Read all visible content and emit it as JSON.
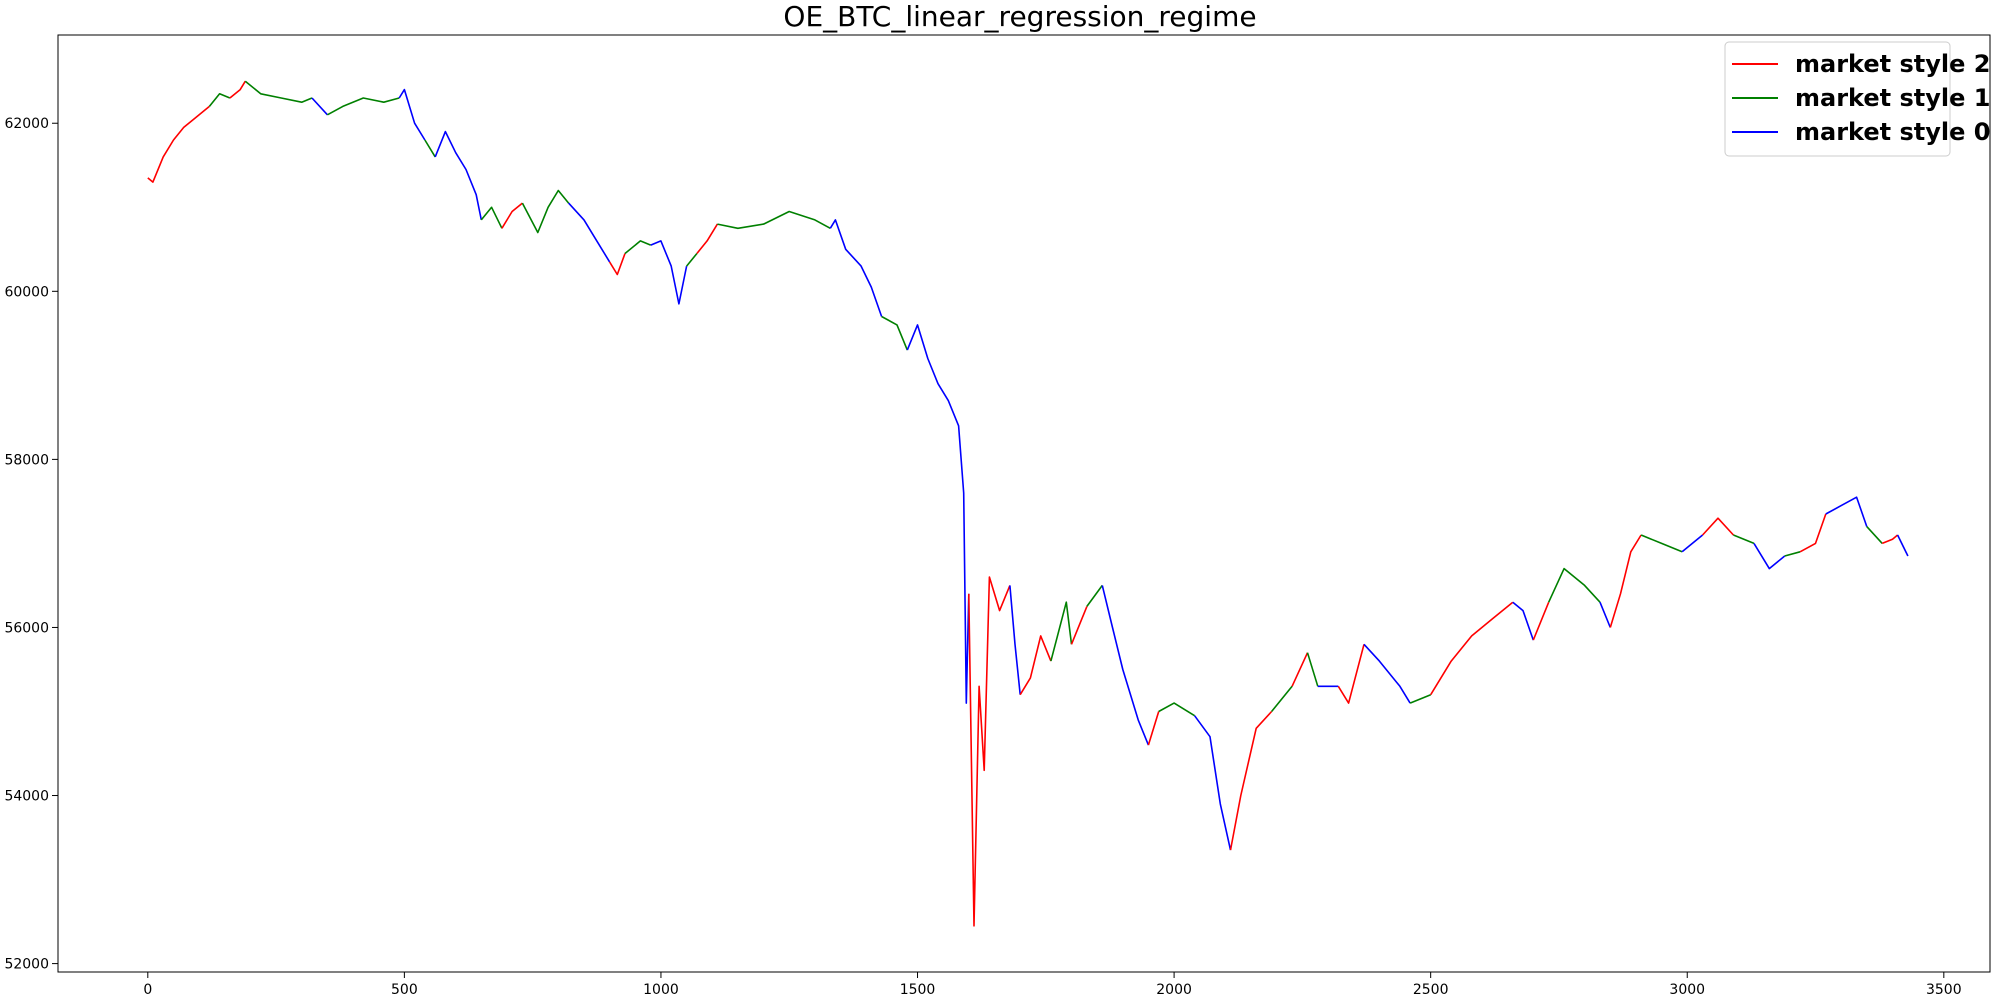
{
  "chart_data": {
    "type": "line",
    "title": "OE_BTC_linear_regression_regime",
    "xlabel": "",
    "ylabel": "",
    "xlim": [
      -175,
      3590
    ],
    "ylim": [
      51900,
      63050
    ],
    "x_ticks": [
      0,
      500,
      1000,
      1500,
      2000,
      2500,
      3000,
      3500
    ],
    "y_ticks": [
      52000,
      54000,
      56000,
      58000,
      60000,
      62000
    ],
    "x_tick_labels": [
      "0",
      "500",
      "1000",
      "1500",
      "2000",
      "2500",
      "3000",
      "3500"
    ],
    "y_tick_labels": [
      "52000",
      "54000",
      "56000",
      "58000",
      "60000",
      "62000"
    ],
    "grid": false,
    "legend": {
      "placement": "top-right",
      "entries": [
        {
          "label": "market style 2",
          "color": "#ff0000"
        },
        {
          "label": "market style 1",
          "color": "#008000"
        },
        {
          "label": "market style 0",
          "color": "#0000ff"
        }
      ]
    },
    "colors": {
      "2": "#ff0000",
      "1": "#008000",
      "0": "#0000ff"
    },
    "points": [
      [
        0,
        61350,
        2
      ],
      [
        10,
        61300,
        2
      ],
      [
        30,
        61600,
        2
      ],
      [
        50,
        61800,
        2
      ],
      [
        70,
        61950,
        2
      ],
      [
        90,
        62050,
        2
      ],
      [
        110,
        62150,
        2
      ],
      [
        120,
        62200,
        2
      ],
      [
        120,
        62200,
        1
      ],
      [
        140,
        62350,
        1
      ],
      [
        160,
        62300,
        1
      ],
      [
        160,
        62300,
        2
      ],
      [
        180,
        62400,
        2
      ],
      [
        190,
        62500,
        2
      ],
      [
        190,
        62500,
        1
      ],
      [
        220,
        62350,
        1
      ],
      [
        260,
        62300,
        1
      ],
      [
        300,
        62250,
        1
      ],
      [
        320,
        62300,
        1
      ],
      [
        320,
        62300,
        0
      ],
      [
        350,
        62100,
        0
      ],
      [
        350,
        62100,
        1
      ],
      [
        380,
        62200,
        1
      ],
      [
        420,
        62300,
        1
      ],
      [
        460,
        62250,
        1
      ],
      [
        490,
        62300,
        1
      ],
      [
        490,
        62300,
        0
      ],
      [
        500,
        62400,
        0
      ],
      [
        520,
        62000,
        0
      ],
      [
        540,
        61800,
        0
      ],
      [
        540,
        61800,
        1
      ],
      [
        560,
        61600,
        1
      ],
      [
        560,
        61600,
        0
      ],
      [
        580,
        61900,
        0
      ],
      [
        600,
        61650,
        0
      ],
      [
        620,
        61450,
        0
      ],
      [
        640,
        61150,
        0
      ],
      [
        650,
        60850,
        0
      ],
      [
        650,
        60850,
        1
      ],
      [
        670,
        61000,
        1
      ],
      [
        690,
        60750,
        1
      ],
      [
        690,
        60750,
        2
      ],
      [
        710,
        60950,
        2
      ],
      [
        730,
        61050,
        2
      ],
      [
        730,
        61050,
        1
      ],
      [
        760,
        60700,
        1
      ],
      [
        780,
        61000,
        1
      ],
      [
        800,
        61200,
        1
      ],
      [
        820,
        61050,
        1
      ],
      [
        820,
        61050,
        0
      ],
      [
        850,
        60850,
        0
      ],
      [
        870,
        60650,
        0
      ],
      [
        900,
        60350,
        0
      ],
      [
        900,
        60350,
        2
      ],
      [
        915,
        60200,
        2
      ],
      [
        930,
        60450,
        2
      ],
      [
        930,
        60450,
        1
      ],
      [
        960,
        60600,
        1
      ],
      [
        980,
        60550,
        1
      ],
      [
        980,
        60550,
        0
      ],
      [
        1000,
        60600,
        0
      ],
      [
        1020,
        60300,
        0
      ],
      [
        1035,
        59850,
        0
      ],
      [
        1050,
        60300,
        0
      ],
      [
        1050,
        60300,
        1
      ],
      [
        1070,
        60450,
        1
      ],
      [
        1070,
        60450,
        2
      ],
      [
        1090,
        60600,
        2
      ],
      [
        1110,
        60800,
        2
      ],
      [
        1110,
        60800,
        1
      ],
      [
        1150,
        60750,
        1
      ],
      [
        1200,
        60800,
        1
      ],
      [
        1250,
        60950,
        1
      ],
      [
        1300,
        60850,
        1
      ],
      [
        1330,
        60750,
        1
      ],
      [
        1330,
        60750,
        0
      ],
      [
        1340,
        60850,
        0
      ],
      [
        1360,
        60500,
        0
      ],
      [
        1390,
        60300,
        0
      ],
      [
        1410,
        60050,
        0
      ],
      [
        1430,
        59700,
        0
      ],
      [
        1430,
        59700,
        1
      ],
      [
        1460,
        59600,
        1
      ],
      [
        1480,
        59300,
        1
      ],
      [
        1480,
        59300,
        0
      ],
      [
        1500,
        59600,
        0
      ],
      [
        1520,
        59200,
        0
      ],
      [
        1540,
        58900,
        0
      ],
      [
        1560,
        58700,
        0
      ],
      [
        1580,
        58400,
        0
      ],
      [
        1590,
        57600,
        0
      ],
      [
        1595,
        55100,
        0
      ],
      [
        1600,
        56400,
        0
      ],
      [
        1600,
        56400,
        2
      ],
      [
        1610,
        52450,
        2
      ],
      [
        1620,
        55300,
        2
      ],
      [
        1630,
        54300,
        2
      ],
      [
        1640,
        56600,
        2
      ],
      [
        1660,
        56200,
        2
      ],
      [
        1680,
        56500,
        2
      ],
      [
        1680,
        56500,
        0
      ],
      [
        1690,
        55800,
        0
      ],
      [
        1700,
        55200,
        0
      ],
      [
        1700,
        55200,
        2
      ],
      [
        1720,
        55400,
        2
      ],
      [
        1740,
        55900,
        2
      ],
      [
        1760,
        55600,
        2
      ],
      [
        1760,
        55600,
        1
      ],
      [
        1790,
        56300,
        1
      ],
      [
        1800,
        55800,
        1
      ],
      [
        1800,
        55800,
        2
      ],
      [
        1830,
        56250,
        2
      ],
      [
        1830,
        56250,
        1
      ],
      [
        1860,
        56500,
        1
      ],
      [
        1860,
        56500,
        0
      ],
      [
        1880,
        56000,
        0
      ],
      [
        1900,
        55500,
        0
      ],
      [
        1930,
        54900,
        0
      ],
      [
        1950,
        54600,
        0
      ],
      [
        1950,
        54600,
        2
      ],
      [
        1970,
        55000,
        2
      ],
      [
        1970,
        55000,
        1
      ],
      [
        2000,
        55100,
        1
      ],
      [
        2040,
        54950,
        1
      ],
      [
        2040,
        54950,
        0
      ],
      [
        2070,
        54700,
        0
      ],
      [
        2090,
        53900,
        0
      ],
      [
        2110,
        53350,
        0
      ],
      [
        2110,
        53350,
        2
      ],
      [
        2130,
        54000,
        2
      ],
      [
        2160,
        54800,
        2
      ],
      [
        2190,
        55000,
        2
      ],
      [
        2190,
        55000,
        1
      ],
      [
        2230,
        55300,
        1
      ],
      [
        2230,
        55300,
        2
      ],
      [
        2260,
        55700,
        2
      ],
      [
        2260,
        55700,
        1
      ],
      [
        2280,
        55300,
        1
      ],
      [
        2280,
        55300,
        0
      ],
      [
        2320,
        55300,
        0
      ],
      [
        2320,
        55300,
        2
      ],
      [
        2340,
        55100,
        2
      ],
      [
        2370,
        55800,
        2
      ],
      [
        2370,
        55800,
        0
      ],
      [
        2400,
        55600,
        0
      ],
      [
        2440,
        55300,
        0
      ],
      [
        2460,
        55100,
        0
      ],
      [
        2460,
        55100,
        1
      ],
      [
        2500,
        55200,
        1
      ],
      [
        2500,
        55200,
        2
      ],
      [
        2540,
        55600,
        2
      ],
      [
        2580,
        55900,
        2
      ],
      [
        2620,
        56100,
        2
      ],
      [
        2660,
        56300,
        2
      ],
      [
        2660,
        56300,
        0
      ],
      [
        2680,
        56200,
        0
      ],
      [
        2700,
        55850,
        0
      ],
      [
        2700,
        55850,
        2
      ],
      [
        2730,
        56300,
        2
      ],
      [
        2730,
        56300,
        1
      ],
      [
        2760,
        56700,
        1
      ],
      [
        2800,
        56500,
        1
      ],
      [
        2830,
        56300,
        1
      ],
      [
        2830,
        56300,
        0
      ],
      [
        2850,
        56000,
        0
      ],
      [
        2850,
        56000,
        2
      ],
      [
        2870,
        56400,
        2
      ],
      [
        2890,
        56900,
        2
      ],
      [
        2910,
        57100,
        2
      ],
      [
        2910,
        57100,
        1
      ],
      [
        2950,
        57000,
        1
      ],
      [
        2990,
        56900,
        1
      ],
      [
        2990,
        56900,
        0
      ],
      [
        3030,
        57100,
        0
      ],
      [
        3030,
        57100,
        2
      ],
      [
        3060,
        57300,
        2
      ],
      [
        3090,
        57100,
        2
      ],
      [
        3090,
        57100,
        1
      ],
      [
        3130,
        57000,
        1
      ],
      [
        3130,
        57000,
        0
      ],
      [
        3160,
        56700,
        0
      ],
      [
        3190,
        56850,
        0
      ],
      [
        3190,
        56850,
        1
      ],
      [
        3220,
        56900,
        1
      ],
      [
        3220,
        56900,
        2
      ],
      [
        3250,
        57000,
        2
      ],
      [
        3270,
        57350,
        2
      ],
      [
        3270,
        57350,
        0
      ],
      [
        3300,
        57450,
        0
      ],
      [
        3330,
        57550,
        0
      ],
      [
        3350,
        57200,
        0
      ],
      [
        3350,
        57200,
        1
      ],
      [
        3380,
        57000,
        1
      ],
      [
        3380,
        57000,
        2
      ],
      [
        3400,
        57050,
        2
      ],
      [
        3410,
        57100,
        2
      ],
      [
        3410,
        57100,
        0
      ],
      [
        3430,
        56850,
        0
      ]
    ]
  }
}
